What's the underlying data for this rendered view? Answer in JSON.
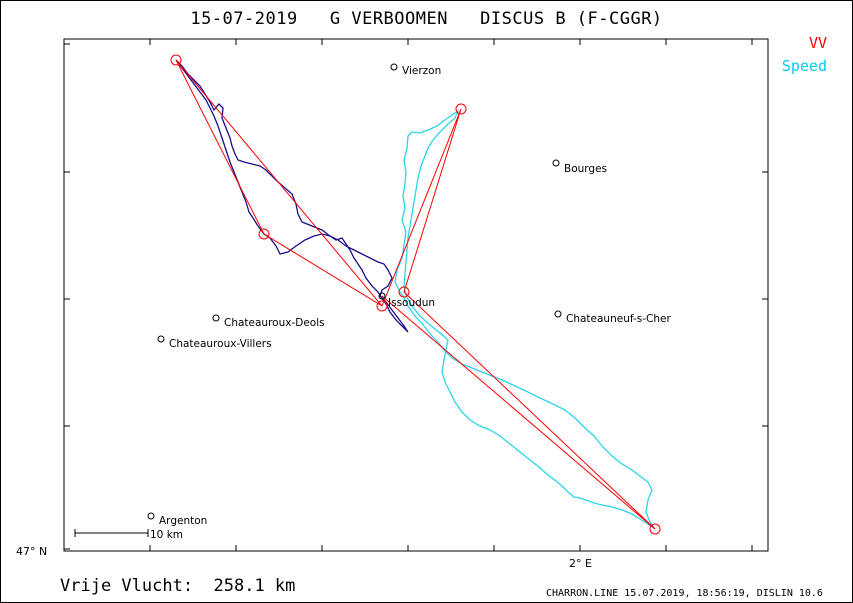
{
  "title": "15-07-2019   G VERBOOMEN   DISCUS B (F-CGGR)",
  "legend": {
    "vv": {
      "label": "VV",
      "color": "#ff0000"
    },
    "speed": {
      "label": "Speed",
      "color": "#00ccee"
    }
  },
  "track_colors": {
    "vv": "#1a0e8c",
    "speed": "#2ad4ec",
    "task": "#ff0000"
  },
  "axes": {
    "lat_label": "47° N",
    "lon_label": "2° E"
  },
  "scale_bar": {
    "label": "10 km"
  },
  "places": [
    {
      "name": "Vierzon"
    },
    {
      "name": "Bourges"
    },
    {
      "name": "Issoudun"
    },
    {
      "name": "Chateauroux-Deols"
    },
    {
      "name": "Chateauneuf-s-Cher"
    },
    {
      "name": "Chateauroux-Villers"
    },
    {
      "name": "Argenton"
    }
  ],
  "distance_text": "Vrije Vlucht:  258.1 km",
  "footer": "CHARRON.LINE 15.07.2019, 18:56:19, DISLIN 10.6"
}
